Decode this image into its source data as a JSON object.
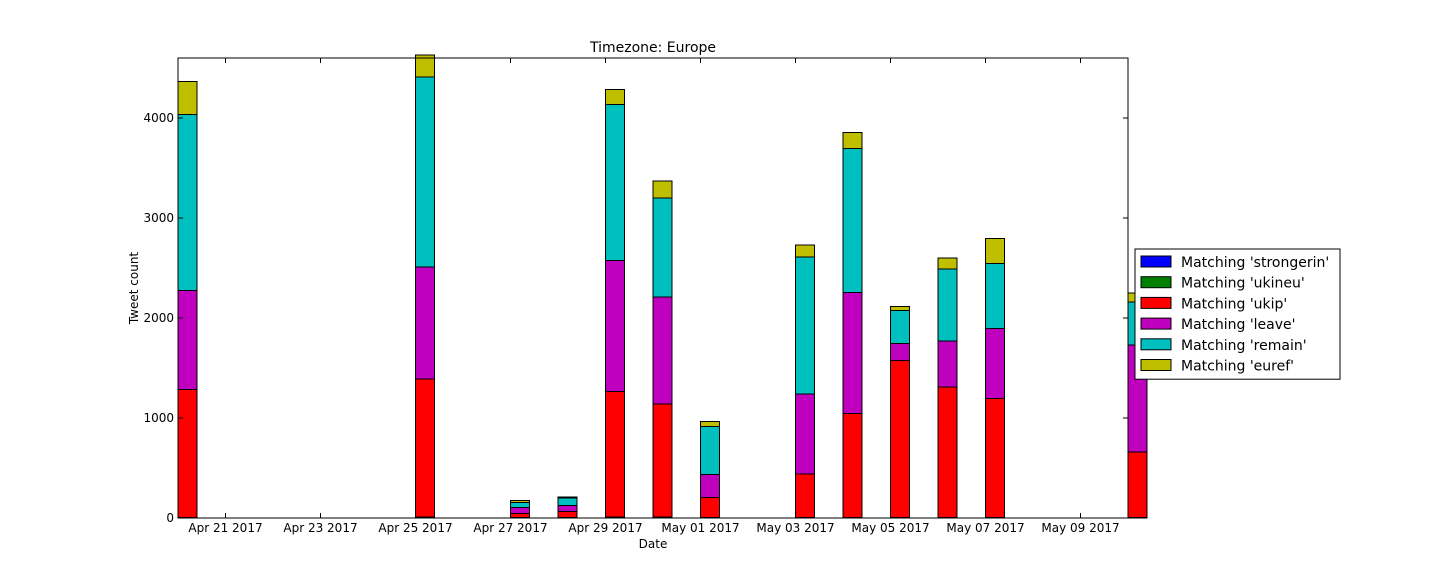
{
  "chart_data": {
    "type": "bar",
    "stacked": true,
    "title": "Timezone: Europe",
    "xlabel": "Date",
    "ylabel": "Tweet count",
    "ylim": [
      0,
      4600
    ],
    "xlim": [
      "2017-04-20",
      "2017-05-10"
    ],
    "yticks": [
      0,
      1000,
      2000,
      3000,
      4000
    ],
    "xticks": [
      "2017-04-21",
      "2017-04-23",
      "2017-04-25",
      "2017-04-27",
      "2017-04-29",
      "2017-05-01",
      "2017-05-03",
      "2017-05-05",
      "2017-05-07",
      "2017-05-09"
    ],
    "xtick_labels": [
      "Apr 21 2017",
      "Apr 23 2017",
      "Apr 25 2017",
      "Apr 27 2017",
      "Apr 29 2017",
      "May 01 2017",
      "May 03 2017",
      "May 05 2017",
      "May 07 2017",
      "May 09 2017"
    ],
    "grid": false,
    "legend_position": "right, outside plot",
    "x": [
      "2017-04-20",
      "2017-04-25",
      "2017-04-27",
      "2017-04-28",
      "2017-04-29",
      "2017-04-30",
      "2017-05-01",
      "2017-05-03",
      "2017-05-04",
      "2017-05-05",
      "2017-05-06",
      "2017-05-07",
      "2017-05-10"
    ],
    "series": [
      {
        "name": "Matching 'strongerin'",
        "color": "#0000ff",
        "values": [
          0,
          0,
          0,
          0,
          0,
          0,
          0,
          0,
          0,
          0,
          0,
          0,
          0
        ]
      },
      {
        "name": "Matching 'ukineu'",
        "color": "#008000",
        "values": [
          5,
          10,
          5,
          5,
          10,
          10,
          5,
          5,
          5,
          5,
          5,
          5,
          5
        ]
      },
      {
        "name": "Matching 'ukip'",
        "color": "#ff0000",
        "values": [
          1280,
          1380,
          40,
          60,
          1255,
          1130,
          200,
          435,
          1040,
          1570,
          1305,
          1190,
          655
        ]
      },
      {
        "name": "Matching 'leave'",
        "color": "#bf00bf",
        "values": [
          990,
          1120,
          60,
          60,
          1310,
          1070,
          230,
          800,
          1210,
          170,
          460,
          700,
          1070
        ]
      },
      {
        "name": "Matching 'remain'",
        "color": "#00bfbf",
        "values": [
          1760,
          1900,
          50,
          75,
          1560,
          990,
          480,
          1370,
          1440,
          330,
          720,
          650,
          430
        ]
      },
      {
        "name": "Matching 'euref'",
        "color": "#bfbf00",
        "values": [
          330,
          220,
          20,
          10,
          150,
          170,
          50,
          120,
          160,
          40,
          110,
          250,
          90
        ]
      }
    ]
  }
}
